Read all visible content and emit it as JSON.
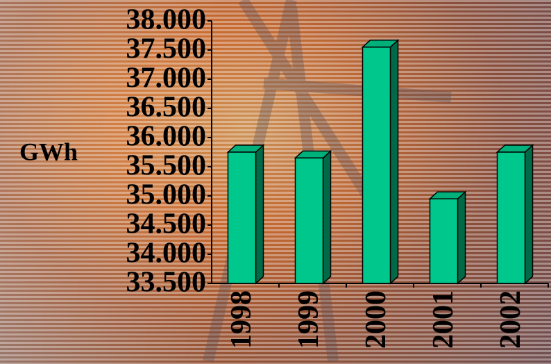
{
  "chart_data": {
    "type": "bar3d",
    "y_label": "GWh",
    "categories": [
      "1998",
      "1999",
      "2000",
      "2001",
      "2002"
    ],
    "values": [
      35750,
      35650,
      37550,
      34950,
      35750
    ],
    "color": "#00c88c",
    "ylim": [
      33500,
      38000
    ],
    "yticks": [
      {
        "value": 33500,
        "label": "33.500"
      },
      {
        "value": 34000,
        "label": "34.000"
      },
      {
        "value": 34500,
        "label": "34.500"
      },
      {
        "value": 35000,
        "label": "35.000"
      },
      {
        "value": 35500,
        "label": "35.500"
      },
      {
        "value": 36000,
        "label": "36.000"
      },
      {
        "value": 36500,
        "label": "36.500"
      },
      {
        "value": 37000,
        "label": "37.000"
      },
      {
        "value": 37500,
        "label": "37.500"
      },
      {
        "value": 38000,
        "label": "38.000"
      }
    ]
  }
}
